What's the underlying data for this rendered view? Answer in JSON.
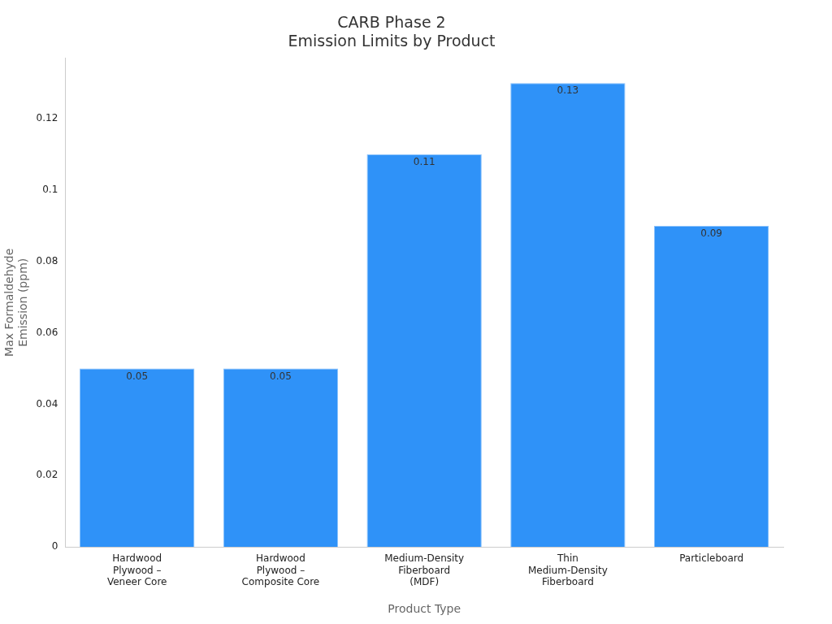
{
  "chart_data": {
    "type": "bar",
    "title": "CARB Phase 2\nEmission Limits by Product",
    "xlabel": "Product Type",
    "ylabel": "Max Formaldehyde Emission (ppm)",
    "categories": [
      "Hardwood Plywood – Veneer Core",
      "Hardwood Plywood – Composite Core",
      "Medium-Density Fiberboard (MDF)",
      "Thin Medium-Density Fiberboard",
      "Particleboard"
    ],
    "values": [
      0.05,
      0.05,
      0.11,
      0.13,
      0.09
    ],
    "color": "#2f92f8",
    "ylim": [
      0,
      0.137
    ],
    "yticks": [
      0,
      0.02,
      0.04,
      0.06,
      0.08,
      0.1,
      0.12
    ],
    "data_labels": true,
    "grid": false,
    "legend": false
  }
}
